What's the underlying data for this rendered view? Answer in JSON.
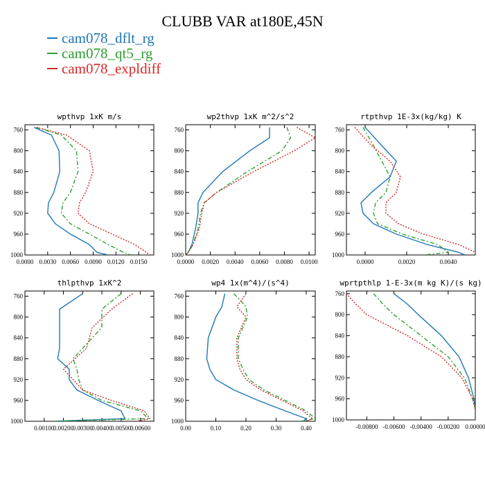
{
  "title": "CLUBB VAR at180E,45N",
  "legend": [
    {
      "label": "cam078_dflt_rg",
      "color": "#1f77b4"
    },
    {
      "label": "cam078_qt5_rg",
      "color": "#2ca02c"
    },
    {
      "label": "cam078_expldiff",
      "color": "#d62728"
    }
  ],
  "chart_data": [
    {
      "type": "line",
      "title": "wpthvp  1xK m/s",
      "xlim": [
        0,
        0.017
      ],
      "ylim": [
        1000,
        750
      ],
      "xticks": [
        0,
        0.003,
        0.006,
        0.009,
        0.012,
        0.015
      ],
      "xtick_labels": [
        "0.0000",
        "0.0030",
        "0.0060",
        "0.0090",
        "0.0120",
        "0.0150"
      ],
      "yticks": [
        760,
        800,
        840,
        880,
        920,
        960,
        1000
      ],
      "y": [
        755,
        770,
        800,
        840,
        880,
        900,
        920,
        940,
        960,
        980,
        995,
        1000
      ],
      "series": [
        {
          "name": "cam078_dflt_rg",
          "color": "#1f77b4",
          "dash": "",
          "values": [
            0.0012,
            0.0035,
            0.0045,
            0.0046,
            0.0038,
            0.0031,
            0.003,
            0.004,
            0.006,
            0.0085,
            0.0095,
            0.011
          ]
        },
        {
          "name": "cam078_qt5_rg",
          "color": "#2ca02c",
          "dash": "6,3,2,3",
          "values": [
            0.0015,
            0.0048,
            0.0068,
            0.007,
            0.006,
            0.005,
            0.0048,
            0.006,
            0.0085,
            0.011,
            0.013,
            0.014
          ]
        },
        {
          "name": "cam078_expldiff",
          "color": "#d62728",
          "dash": "2,2",
          "values": [
            0.0015,
            0.0055,
            0.0085,
            0.009,
            0.008,
            0.0072,
            0.007,
            0.0085,
            0.0115,
            0.0145,
            0.016,
            0.0165
          ]
        }
      ]
    },
    {
      "type": "line",
      "title": "wp2thvp  1xK m^2/s^2",
      "xlim": [
        0,
        0.0105
      ],
      "ylim": [
        1000,
        750
      ],
      "xticks": [
        0,
        0.002,
        0.004,
        0.006,
        0.008,
        0.01
      ],
      "xtick_labels": [
        "0.0000",
        "0.0020",
        "0.0040",
        "0.0060",
        "0.0080",
        "0.0100"
      ],
      "yticks": [
        760,
        800,
        840,
        880,
        920,
        960,
        1000
      ],
      "y": [
        755,
        775,
        800,
        840,
        880,
        900,
        920,
        950,
        980,
        995,
        1000
      ],
      "series": [
        {
          "name": "cam078_dflt_rg",
          "color": "#1f77b4",
          "dash": "",
          "values": [
            0.0068,
            0.0068,
            0.0052,
            0.003,
            0.0014,
            0.001,
            0.001,
            0.0008,
            0.0005,
            0.0002,
            0.0
          ]
        },
        {
          "name": "cam078_qt5_rg",
          "color": "#2ca02c",
          "dash": "6,3,2,3",
          "values": [
            0.0082,
            0.0085,
            0.0078,
            0.005,
            0.0025,
            0.0015,
            0.0012,
            0.001,
            0.0006,
            0.0002,
            0.0
          ]
        },
        {
          "name": "cam078_expldiff",
          "color": "#d62728",
          "dash": "2,2",
          "values": [
            0.009,
            0.0105,
            0.0088,
            0.0055,
            0.0025,
            0.0015,
            0.0013,
            0.0011,
            0.0006,
            0.0002,
            0.0
          ]
        }
      ]
    },
    {
      "type": "line",
      "title": "rtpthvp  1E-3x(kg/kg) K",
      "xlim": [
        -0.0009,
        0.0053
      ],
      "ylim": [
        1000,
        750
      ],
      "xticks": [
        0,
        0.002,
        0.004
      ],
      "xtick_labels": [
        "0.0000",
        "0.0020",
        "0.0040"
      ],
      "yticks": [
        760,
        800,
        840,
        880,
        920,
        960,
        1000
      ],
      "y": [
        755,
        790,
        820,
        850,
        880,
        900,
        920,
        940,
        960,
        980,
        995,
        1000
      ],
      "series": [
        {
          "name": "cam078_dflt_rg",
          "color": "#1f77b4",
          "dash": "",
          "values": [
            0.0,
            0.0008,
            0.0015,
            0.0012,
            0.0003,
            -0.0002,
            -0.0001,
            0.0004,
            0.0015,
            0.003,
            0.0045,
            0.0048
          ]
        },
        {
          "name": "cam078_qt5_rg",
          "color": "#2ca02c",
          "dash": "6,3,2,3",
          "values": [
            -0.0001,
            0.0004,
            0.0008,
            0.0012,
            0.001,
            0.0005,
            0.0004,
            0.0006,
            0.0018,
            0.0035,
            0.004,
            0.0028
          ]
        },
        {
          "name": "cam078_expldiff",
          "color": "#d62728",
          "dash": "2,2",
          "values": [
            -0.0005,
            0.0003,
            0.0012,
            0.0017,
            0.0015,
            0.001,
            0.001,
            0.0016,
            0.0028,
            0.0045,
            0.0053,
            0.0053
          ]
        }
      ]
    },
    {
      "type": "line",
      "title": "thlpthvp  1xK^2",
      "xlim": [
        0,
        0.0067
      ],
      "ylim": [
        1000,
        750
      ],
      "xticks": [
        0.001,
        0.002,
        0.003,
        0.004,
        0.005,
        0.006
      ],
      "xtick_labels": [
        "0.00100",
        "0.00200",
        "0.00300",
        "0.00400",
        "0.00500",
        "0.00600"
      ],
      "yticks": [
        760,
        800,
        840,
        880,
        920,
        960,
        1000
      ],
      "y": [
        755,
        785,
        820,
        860,
        880,
        900,
        920,
        940,
        960,
        980,
        995,
        1000
      ],
      "series": [
        {
          "name": "cam078_dflt_rg",
          "color": "#1f77b4",
          "dash": "",
          "values": [
            0.003,
            0.0018,
            0.0018,
            0.0018,
            0.0017,
            0.0023,
            0.0023,
            0.0027,
            0.0038,
            0.005,
            0.0052,
            0.0015
          ]
        },
        {
          "name": "cam078_qt5_rg",
          "color": "#2ca02c",
          "dash": "6,3,2,3",
          "values": [
            0.005,
            0.004,
            0.004,
            0.003,
            0.0025,
            0.0027,
            0.0028,
            0.003,
            0.004,
            0.006,
            0.0064,
            0.0015
          ]
        },
        {
          "name": "cam078_expldiff",
          "color": "#d62728",
          "dash": "2,2",
          "values": [
            0.0056,
            0.0045,
            0.0035,
            0.0032,
            0.0026,
            0.002,
            0.0025,
            0.003,
            0.0045,
            0.0062,
            0.0065,
            0.0058
          ]
        }
      ]
    },
    {
      "type": "line",
      "title": "wp4  1x(m^4)/(s^4)",
      "xlim": [
        0,
        0.43
      ],
      "ylim": [
        1000,
        750
      ],
      "xticks": [
        0,
        0.1,
        0.2,
        0.3,
        0.4
      ],
      "xtick_labels": [
        "0.00",
        "0.10",
        "0.20",
        "0.30",
        "0.40"
      ],
      "yticks": [
        760,
        800,
        840,
        880,
        920,
        960,
        1000
      ],
      "y": [
        755,
        780,
        800,
        840,
        880,
        900,
        920,
        940,
        960,
        980,
        995,
        1000
      ],
      "series": [
        {
          "name": "cam078_dflt_rg",
          "color": "#1f77b4",
          "dash": "",
          "values": [
            0.13,
            0.12,
            0.1,
            0.075,
            0.07,
            0.08,
            0.1,
            0.16,
            0.24,
            0.33,
            0.4,
            0.39
          ]
        },
        {
          "name": "cam078_qt5_rg",
          "color": "#2ca02c",
          "dash": "6,3,2,3",
          "values": [
            0.16,
            0.2,
            0.205,
            0.175,
            0.175,
            0.19,
            0.21,
            0.26,
            0.33,
            0.4,
            0.43,
            0.38
          ]
        },
        {
          "name": "cam078_expldiff",
          "color": "#d62728",
          "dash": "2,2",
          "values": [
            0.2,
            0.17,
            0.2,
            0.17,
            0.17,
            0.18,
            0.2,
            0.25,
            0.32,
            0.39,
            0.42,
            0.4
          ]
        }
      ]
    },
    {
      "type": "line",
      "title": "wprtpthlp  1-E-3x(m kg K)/(s kg)",
      "xlim": [
        -0.0095,
        0.0
      ],
      "ylim": [
        1000,
        755
      ],
      "xticks": [
        -0.008,
        -0.006,
        -0.004,
        -0.002,
        0.0
      ],
      "xtick_labels": [
        "-0.00800",
        "-0.00600",
        "-0.00400",
        "-0.00200",
        "0.00000"
      ],
      "yticks": [
        760,
        800,
        840,
        880,
        920,
        960,
        1000
      ],
      "y": [
        760,
        780,
        800,
        840,
        880,
        920,
        960,
        980,
        1000
      ],
      "series": [
        {
          "name": "cam078_dflt_rg",
          "color": "#1f77b4",
          "dash": "",
          "values": [
            -0.006,
            -0.005,
            -0.0042,
            -0.0025,
            -0.0012,
            -0.0005,
            -0.0001,
            0.0,
            0.0
          ]
        },
        {
          "name": "cam078_qt5_rg",
          "color": "#2ca02c",
          "dash": "6,3,2,3",
          "values": [
            -0.0075,
            -0.0068,
            -0.006,
            -0.004,
            -0.002,
            -0.0008,
            -0.0002,
            0.0,
            0.0
          ]
        },
        {
          "name": "cam078_expldiff",
          "color": "#d62728",
          "dash": "2,2",
          "values": [
            -0.0095,
            -0.0088,
            -0.008,
            -0.005,
            -0.0025,
            -0.001,
            -0.0002,
            0.0,
            0.0
          ]
        }
      ]
    }
  ]
}
